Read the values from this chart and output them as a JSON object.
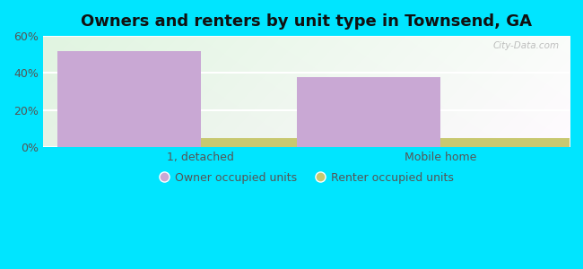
{
  "title": "Owners and renters by unit type in Townsend, GA",
  "categories": [
    "1, detached",
    "Mobile home"
  ],
  "owner_values": [
    52,
    38
  ],
  "renter_values": [
    5,
    5
  ],
  "owner_color": "#c9a8d4",
  "renter_color": "#c8c870",
  "bar_width": 0.3,
  "ylim": [
    0,
    60
  ],
  "yticks": [
    0,
    20,
    40,
    60
  ],
  "ytick_labels": [
    "0%",
    "20%",
    "40%",
    "60%"
  ],
  "outer_bg": "#00e5ff",
  "legend_owner": "Owner occupied units",
  "legend_renter": "Renter occupied units",
  "title_fontsize": 13,
  "watermark": "City-Data.com",
  "tick_color": "#555555",
  "grid_color": "#ccddcc",
  "group_positions": [
    0.28,
    0.78
  ]
}
